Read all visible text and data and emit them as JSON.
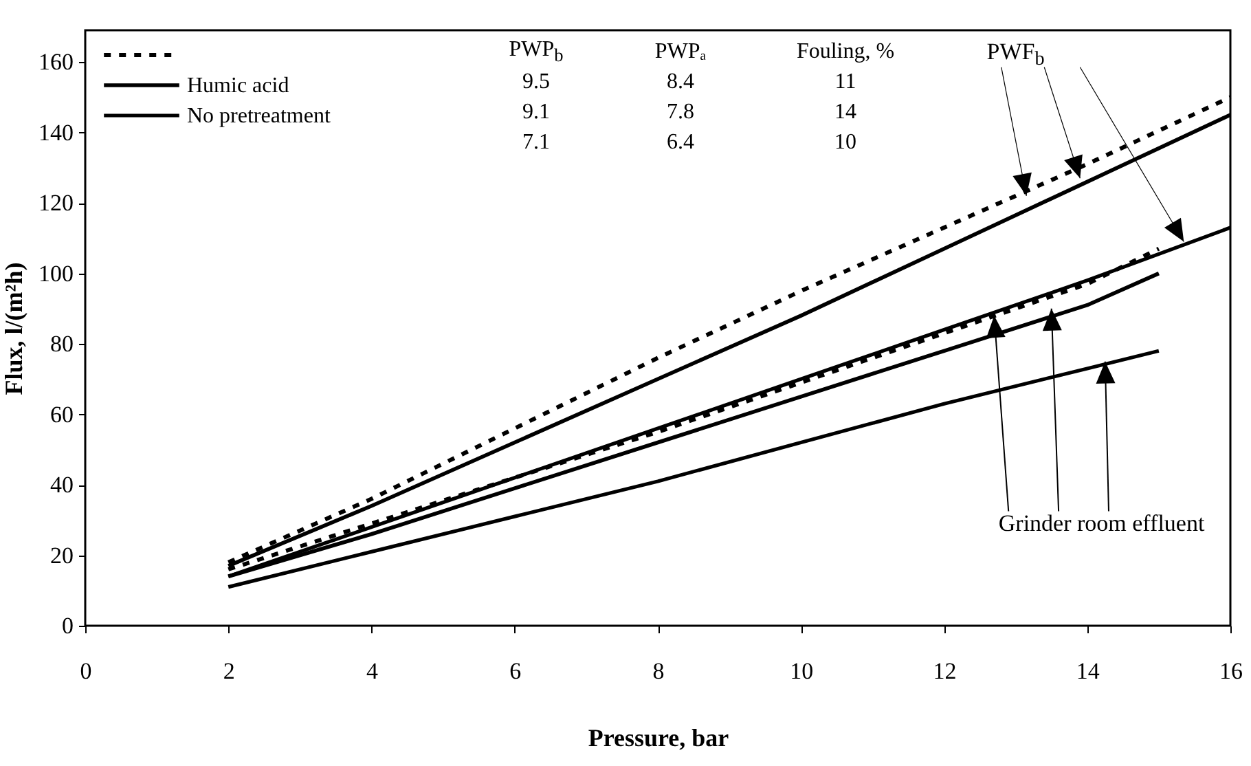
{
  "chart_data": {
    "type": "line",
    "xlabel": "Pressure, bar",
    "ylabel": "Flux, l/(m²h)",
    "xlim": [
      0,
      16
    ],
    "xticks": [
      0,
      2,
      4,
      6,
      8,
      10,
      12,
      14,
      16
    ],
    "ylim": [
      0,
      169
    ],
    "yticks": [
      0,
      20,
      40,
      60,
      80,
      100,
      120,
      140,
      160
    ],
    "grid": false,
    "legend": "top left",
    "marker": "none",
    "series": [
      {
        "color": "#000000",
        "line_style": "dashed",
        "x": [
          2,
          4,
          6,
          8,
          10,
          12,
          14,
          16
        ],
        "values": [
          18,
          36,
          56,
          76,
          95,
          113,
          131,
          150
        ]
      },
      {
        "name": "Humic acid",
        "color": "#000000",
        "line_style": "solid",
        "x": [
          2,
          4,
          6,
          8,
          10,
          12,
          14,
          16
        ],
        "values": [
          17,
          34,
          52,
          70,
          88,
          107,
          126,
          145
        ]
      },
      {
        "name": "No pretreatment",
        "color": "#000000",
        "line_style": "solid",
        "x": [
          2,
          4,
          6,
          8,
          10,
          12,
          14,
          16
        ],
        "values": [
          14,
          28,
          42,
          56,
          70,
          84,
          98,
          113
        ]
      },
      {
        "color": "#000000",
        "line_style": "dashed",
        "x": [
          2,
          4,
          6,
          8,
          10,
          12,
          14,
          15
        ],
        "values": [
          16,
          29,
          42,
          55,
          69,
          83,
          97,
          107
        ]
      },
      {
        "color": "#000000",
        "line_style": "solid",
        "x": [
          2,
          4,
          6,
          8,
          10,
          12,
          14,
          15
        ],
        "values": [
          14,
          26,
          39,
          52,
          65,
          78,
          91,
          100
        ]
      },
      {
        "color": "#000000",
        "line_style": "solid",
        "x": [
          2,
          4,
          6,
          8,
          10,
          12,
          14,
          15
        ],
        "values": [
          11,
          21,
          31,
          41,
          52,
          63,
          73,
          78
        ]
      }
    ],
    "annotations": [
      "PWP$_{b}$",
      "PWPₐ",
      "Fouling, %",
      "9.5",
      "8.4",
      "11",
      "9.1",
      "7.8",
      "14",
      "7.1",
      "6.4",
      "10",
      {
        "text": "PWF$_{b}$",
        "x": 13.15,
        "y": 122
      },
      {
        "text": "Grinder room effluent",
        "x": 12.7,
        "y": 88
      }
    ]
  }
}
